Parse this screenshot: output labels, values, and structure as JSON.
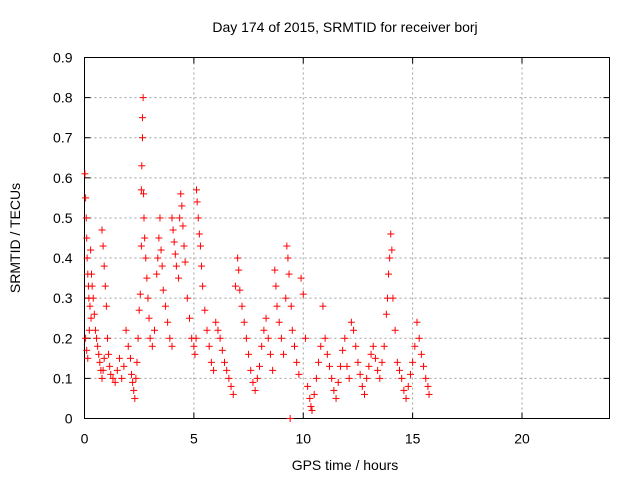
{
  "chart_data": {
    "type": "scatter",
    "title": "Day 174 of 2015, SRMTID for receiver borj",
    "xlabel": "GPS time / hours",
    "ylabel": "SRMTID / TECUs",
    "xlim": [
      0,
      24
    ],
    "ylim": [
      0,
      0.9
    ],
    "xticks": [
      0,
      5,
      10,
      15,
      20
    ],
    "yticks": [
      0,
      0.1,
      0.2,
      0.3,
      0.4,
      0.5,
      0.6,
      0.7,
      0.8,
      0.9
    ],
    "xtick_labels": [
      "0",
      "5",
      "10",
      "15",
      "20"
    ],
    "ytick_labels": [
      "0",
      "0.1",
      "0.2",
      "0.3",
      "0.4",
      "0.5",
      "0.6",
      "0.7",
      "0.8",
      "0.9"
    ],
    "grid": true,
    "marker": "plus",
    "color": "#ff0000",
    "series": [
      {
        "name": "SRMTID",
        "points": [
          [
            0.02,
            0.61
          ],
          [
            0.05,
            0.55
          ],
          [
            0.08,
            0.5
          ],
          [
            0.1,
            0.45
          ],
          [
            0.12,
            0.4
          ],
          [
            0.15,
            0.36
          ],
          [
            0.18,
            0.33
          ],
          [
            0.2,
            0.3
          ],
          [
            0.25,
            0.28
          ],
          [
            0.3,
            0.25
          ],
          [
            0.05,
            0.2
          ],
          [
            0.1,
            0.17
          ],
          [
            0.15,
            0.15
          ],
          [
            0.22,
            0.22
          ],
          [
            0.28,
            0.42
          ],
          [
            0.32,
            0.36
          ],
          [
            0.35,
            0.33
          ],
          [
            0.4,
            0.3
          ],
          [
            0.45,
            0.26
          ],
          [
            0.5,
            0.22
          ],
          [
            0.55,
            0.2
          ],
          [
            0.6,
            0.18
          ],
          [
            0.65,
            0.16
          ],
          [
            0.7,
            0.14
          ],
          [
            0.75,
            0.12
          ],
          [
            0.8,
            0.1
          ],
          [
            0.85,
            0.12
          ],
          [
            0.9,
            0.15
          ],
          [
            0.8,
            0.47
          ],
          [
            0.85,
            0.43
          ],
          [
            0.9,
            0.38
          ],
          [
            0.95,
            0.33
          ],
          [
            1.0,
            0.28
          ],
          [
            1.05,
            0.2
          ],
          [
            1.1,
            0.16
          ],
          [
            1.15,
            0.13
          ],
          [
            1.2,
            0.11
          ],
          [
            1.3,
            0.1
          ],
          [
            1.4,
            0.09
          ],
          [
            1.5,
            0.12
          ],
          [
            1.6,
            0.15
          ],
          [
            1.7,
            0.1
          ],
          [
            1.8,
            0.13
          ],
          [
            1.9,
            0.22
          ],
          [
            2.0,
            0.18
          ],
          [
            2.1,
            0.15
          ],
          [
            2.15,
            0.11
          ],
          [
            2.2,
            0.09
          ],
          [
            2.25,
            0.07
          ],
          [
            2.3,
            0.05
          ],
          [
            2.35,
            0.1
          ],
          [
            2.4,
            0.14
          ],
          [
            2.45,
            0.2
          ],
          [
            2.5,
            0.27
          ],
          [
            2.55,
            0.31
          ],
          [
            2.6,
            0.43
          ],
          [
            2.6,
            0.57
          ],
          [
            2.62,
            0.63
          ],
          [
            2.65,
            0.7
          ],
          [
            2.65,
            0.75
          ],
          [
            2.68,
            0.8
          ],
          [
            2.7,
            0.56
          ],
          [
            2.72,
            0.5
          ],
          [
            2.75,
            0.45
          ],
          [
            2.8,
            0.4
          ],
          [
            2.85,
            0.35
          ],
          [
            2.9,
            0.3
          ],
          [
            2.95,
            0.25
          ],
          [
            3.0,
            0.2
          ],
          [
            3.1,
            0.18
          ],
          [
            3.2,
            0.22
          ],
          [
            3.3,
            0.36
          ],
          [
            3.35,
            0.4
          ],
          [
            3.4,
            0.45
          ],
          [
            3.45,
            0.5
          ],
          [
            3.5,
            0.42
          ],
          [
            3.55,
            0.38
          ],
          [
            3.6,
            0.32
          ],
          [
            3.7,
            0.28
          ],
          [
            3.8,
            0.24
          ],
          [
            3.9,
            0.2
          ],
          [
            4.0,
            0.18
          ],
          [
            4.0,
            0.5
          ],
          [
            4.05,
            0.47
          ],
          [
            4.1,
            0.44
          ],
          [
            4.15,
            0.41
          ],
          [
            4.2,
            0.38
          ],
          [
            4.3,
            0.35
          ],
          [
            4.35,
            0.5
          ],
          [
            4.4,
            0.56
          ],
          [
            4.45,
            0.53
          ],
          [
            4.5,
            0.48
          ],
          [
            4.55,
            0.43
          ],
          [
            4.6,
            0.39
          ],
          [
            4.7,
            0.3
          ],
          [
            4.8,
            0.25
          ],
          [
            4.9,
            0.2
          ],
          [
            5.0,
            0.18
          ],
          [
            5.05,
            0.16
          ],
          [
            5.1,
            0.2
          ],
          [
            5.12,
            0.57
          ],
          [
            5.15,
            0.54
          ],
          [
            5.2,
            0.5
          ],
          [
            5.25,
            0.46
          ],
          [
            5.3,
            0.43
          ],
          [
            5.35,
            0.38
          ],
          [
            5.4,
            0.33
          ],
          [
            5.5,
            0.27
          ],
          [
            5.6,
            0.22
          ],
          [
            5.7,
            0.18
          ],
          [
            5.8,
            0.14
          ],
          [
            5.9,
            0.12
          ],
          [
            6.0,
            0.24
          ],
          [
            6.1,
            0.22
          ],
          [
            6.2,
            0.2
          ],
          [
            6.3,
            0.17
          ],
          [
            6.4,
            0.14
          ],
          [
            6.5,
            0.12
          ],
          [
            6.6,
            0.1
          ],
          [
            6.7,
            0.08
          ],
          [
            6.8,
            0.06
          ],
          [
            6.9,
            0.33
          ],
          [
            7.0,
            0.4
          ],
          [
            7.05,
            0.37
          ],
          [
            7.1,
            0.32
          ],
          [
            7.2,
            0.28
          ],
          [
            7.3,
            0.24
          ],
          [
            7.4,
            0.2
          ],
          [
            7.5,
            0.16
          ],
          [
            7.6,
            0.12
          ],
          [
            7.7,
            0.09
          ],
          [
            7.8,
            0.07
          ],
          [
            7.9,
            0.1
          ],
          [
            8.0,
            0.13
          ],
          [
            8.1,
            0.18
          ],
          [
            8.2,
            0.22
          ],
          [
            8.3,
            0.25
          ],
          [
            8.4,
            0.2
          ],
          [
            8.5,
            0.16
          ],
          [
            8.6,
            0.12
          ],
          [
            8.7,
            0.37
          ],
          [
            8.75,
            0.33
          ],
          [
            8.8,
            0.28
          ],
          [
            8.9,
            0.24
          ],
          [
            9.0,
            0.2
          ],
          [
            9.1,
            0.16
          ],
          [
            9.2,
            0.3
          ],
          [
            9.25,
            0.43
          ],
          [
            9.3,
            0.4
          ],
          [
            9.35,
            0.36
          ],
          [
            9.4,
            0.0
          ],
          [
            9.45,
            0.28
          ],
          [
            9.5,
            0.22
          ],
          [
            9.6,
            0.18
          ],
          [
            9.7,
            0.14
          ],
          [
            9.8,
            0.11
          ],
          [
            9.9,
            0.35
          ],
          [
            10.0,
            0.31
          ],
          [
            10.1,
            0.2
          ],
          [
            10.2,
            0.08
          ],
          [
            10.3,
            0.05
          ],
          [
            10.35,
            0.03
          ],
          [
            10.4,
            0.02
          ],
          [
            10.5,
            0.06
          ],
          [
            10.6,
            0.1
          ],
          [
            10.7,
            0.14
          ],
          [
            10.8,
            0.18
          ],
          [
            10.9,
            0.28
          ],
          [
            11.0,
            0.2
          ],
          [
            11.1,
            0.16
          ],
          [
            11.2,
            0.13
          ],
          [
            11.3,
            0.1
          ],
          [
            11.4,
            0.07
          ],
          [
            11.5,
            0.05
          ],
          [
            11.6,
            0.09
          ],
          [
            11.7,
            0.13
          ],
          [
            11.8,
            0.17
          ],
          [
            11.9,
            0.2
          ],
          [
            12.0,
            0.13
          ],
          [
            12.1,
            0.1
          ],
          [
            12.2,
            0.24
          ],
          [
            12.3,
            0.22
          ],
          [
            12.4,
            0.18
          ],
          [
            12.5,
            0.14
          ],
          [
            12.6,
            0.11
          ],
          [
            12.7,
            0.08
          ],
          [
            12.8,
            0.06
          ],
          [
            12.9,
            0.1
          ],
          [
            13.0,
            0.13
          ],
          [
            13.1,
            0.16
          ],
          [
            13.2,
            0.18
          ],
          [
            13.3,
            0.15
          ],
          [
            13.4,
            0.12
          ],
          [
            13.5,
            0.1
          ],
          [
            13.6,
            0.14
          ],
          [
            13.7,
            0.18
          ],
          [
            13.8,
            0.26
          ],
          [
            13.85,
            0.3
          ],
          [
            13.9,
            0.36
          ],
          [
            13.95,
            0.4
          ],
          [
            14.0,
            0.46
          ],
          [
            14.05,
            0.42
          ],
          [
            14.1,
            0.3
          ],
          [
            14.2,
            0.22
          ],
          [
            14.3,
            0.14
          ],
          [
            14.4,
            0.12
          ],
          [
            14.5,
            0.1
          ],
          [
            14.6,
            0.07
          ],
          [
            14.7,
            0.05
          ],
          [
            14.8,
            0.08
          ],
          [
            14.9,
            0.11
          ],
          [
            15.0,
            0.14
          ],
          [
            15.1,
            0.18
          ],
          [
            15.2,
            0.24
          ],
          [
            15.3,
            0.2
          ],
          [
            15.4,
            0.16
          ],
          [
            15.5,
            0.13
          ],
          [
            15.6,
            0.1
          ],
          [
            15.7,
            0.08
          ],
          [
            15.75,
            0.06
          ]
        ]
      }
    ]
  }
}
